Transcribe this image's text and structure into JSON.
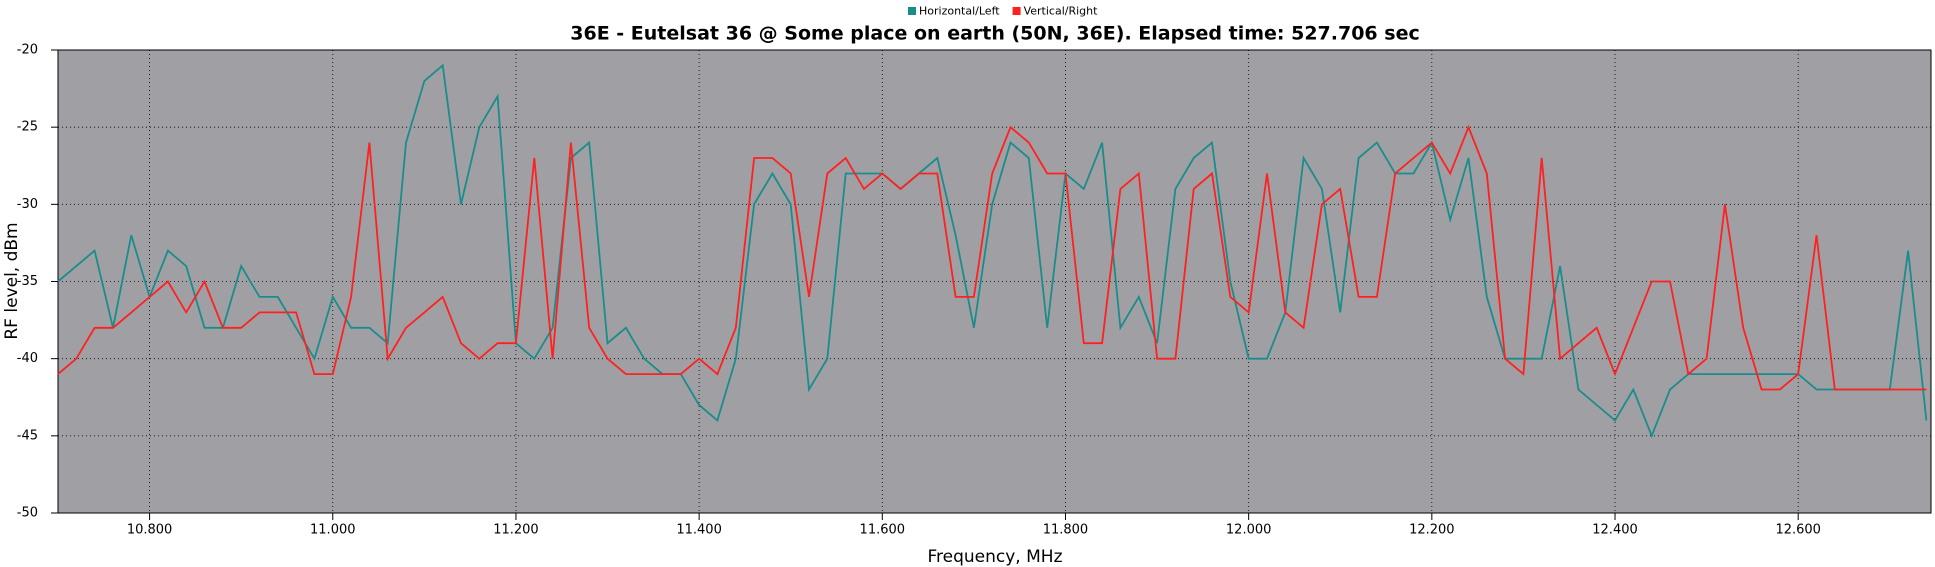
{
  "chart_data": {
    "type": "line",
    "title": "36E - Eutelsat 36 @ Some place on earth (50N, 36E). Elapsed time: 527.706 sec",
    "x_label": "Frequency, MHz",
    "y_label": "RF level, dBm",
    "legend": "top",
    "grid": true,
    "background": "#a0a0a4",
    "x": [
      10.7,
      10.72,
      10.74,
      10.76,
      10.78,
      10.8,
      10.82,
      10.84,
      10.86,
      10.88,
      10.9,
      10.92,
      10.94,
      10.96,
      10.98,
      11.0,
      11.02,
      11.04,
      11.06,
      11.08,
      11.1,
      11.12,
      11.14,
      11.16,
      11.18,
      11.2,
      11.22,
      11.24,
      11.26,
      11.28,
      11.3,
      11.32,
      11.34,
      11.36,
      11.38,
      11.4,
      11.42,
      11.44,
      11.46,
      11.48,
      11.5,
      11.52,
      11.54,
      11.56,
      11.58,
      11.6,
      11.62,
      11.64,
      11.66,
      11.68,
      11.7,
      11.72,
      11.74,
      11.76,
      11.78,
      11.8,
      11.82,
      11.84,
      11.86,
      11.88,
      11.9,
      11.92,
      11.94,
      11.96,
      11.98,
      12.0,
      12.02,
      12.04,
      12.06,
      12.08,
      12.1,
      12.12,
      12.14,
      12.16,
      12.18,
      12.2,
      12.22,
      12.24,
      12.26,
      12.28,
      12.3,
      12.32,
      12.34,
      12.36,
      12.38,
      12.4,
      12.42,
      12.44,
      12.46,
      12.48,
      12.5,
      12.52,
      12.54,
      12.56,
      12.58,
      12.6,
      12.62,
      12.64,
      12.66,
      12.68,
      12.7,
      12.72,
      12.74
    ],
    "series": [
      {
        "name": "Horizontal/Left",
        "color": "#1a8c8c",
        "values": [
          -35,
          -34,
          -33,
          -38,
          -32,
          -36,
          -33,
          -34,
          -38,
          -38,
          -34,
          -36,
          -36,
          -38,
          -40,
          -36,
          -38,
          -38,
          -39,
          -26,
          -22,
          -21,
          -30,
          -25,
          -23,
          -39,
          -40,
          -38,
          -27,
          -26,
          -39,
          -38,
          -40,
          -41,
          -41,
          -43,
          -44,
          -40,
          -30,
          -28,
          -30,
          -42,
          -40,
          -28,
          -28,
          -28,
          -29,
          -28,
          -27,
          -32,
          -38,
          -30,
          -26,
          -27,
          -38,
          -28,
          -29,
          -26,
          -38,
          -36,
          -39,
          -29,
          -27,
          -26,
          -35,
          -40,
          -40,
          -37,
          -27,
          -29,
          -37,
          -27,
          -26,
          -28,
          -28,
          -26,
          -31,
          -27,
          -36,
          -40,
          -40,
          -40,
          -34,
          -42,
          -43,
          -44,
          -42,
          -45,
          -42,
          -41,
          -41,
          -41,
          -41,
          -41,
          -41,
          -41,
          -42,
          -42,
          -42,
          -42,
          -42,
          -33,
          -44
        ]
      },
      {
        "name": "Vertical/Right",
        "color": "#ff2020",
        "values": [
          -41,
          -40,
          -38,
          -38,
          -37,
          -36,
          -35,
          -37,
          -35,
          -38,
          -38,
          -37,
          -37,
          -37,
          -41,
          -41,
          -36,
          -26,
          -40,
          -38,
          -37,
          -36,
          -39,
          -40,
          -39,
          -39,
          -27,
          -40,
          -26,
          -38,
          -40,
          -41,
          -41,
          -41,
          -41,
          -40,
          -41,
          -38,
          -27,
          -27,
          -28,
          -36,
          -28,
          -27,
          -29,
          -28,
          -29,
          -28,
          -28,
          -36,
          -36,
          -28,
          -25,
          -26,
          -28,
          -28,
          -39,
          -39,
          -29,
          -28,
          -40,
          -40,
          -29,
          -28,
          -36,
          -37,
          -28,
          -37,
          -38,
          -30,
          -29,
          -36,
          -36,
          -28,
          -27,
          -26,
          -28,
          -25,
          -28,
          -40,
          -41,
          -27,
          -40,
          -39,
          -38,
          -41,
          -38,
          -35,
          -35,
          -41,
          -40,
          -30,
          -38,
          -42,
          -42,
          -41,
          -32,
          -42,
          -42,
          -42,
          -42,
          -42,
          -42
        ]
      }
    ],
    "xlim": [
      10.7,
      12.745
    ],
    "xticks": [
      {
        "value": 10.8,
        "label": "10.800"
      },
      {
        "value": 11.0,
        "label": "11.000"
      },
      {
        "value": 11.2,
        "label": "11.200"
      },
      {
        "value": 11.4,
        "label": "11.400"
      },
      {
        "value": 11.6,
        "label": "11.600"
      },
      {
        "value": 11.8,
        "label": "11.800"
      },
      {
        "value": 12.0,
        "label": "12.000"
      },
      {
        "value": 12.2,
        "label": "12.200"
      },
      {
        "value": 12.4,
        "label": "12.400"
      },
      {
        "value": 12.6,
        "label": "12.600"
      }
    ],
    "ylim": [
      -50,
      -20
    ],
    "yticks": [
      -20,
      -25,
      -30,
      -35,
      -40,
      -45,
      -50
    ]
  }
}
